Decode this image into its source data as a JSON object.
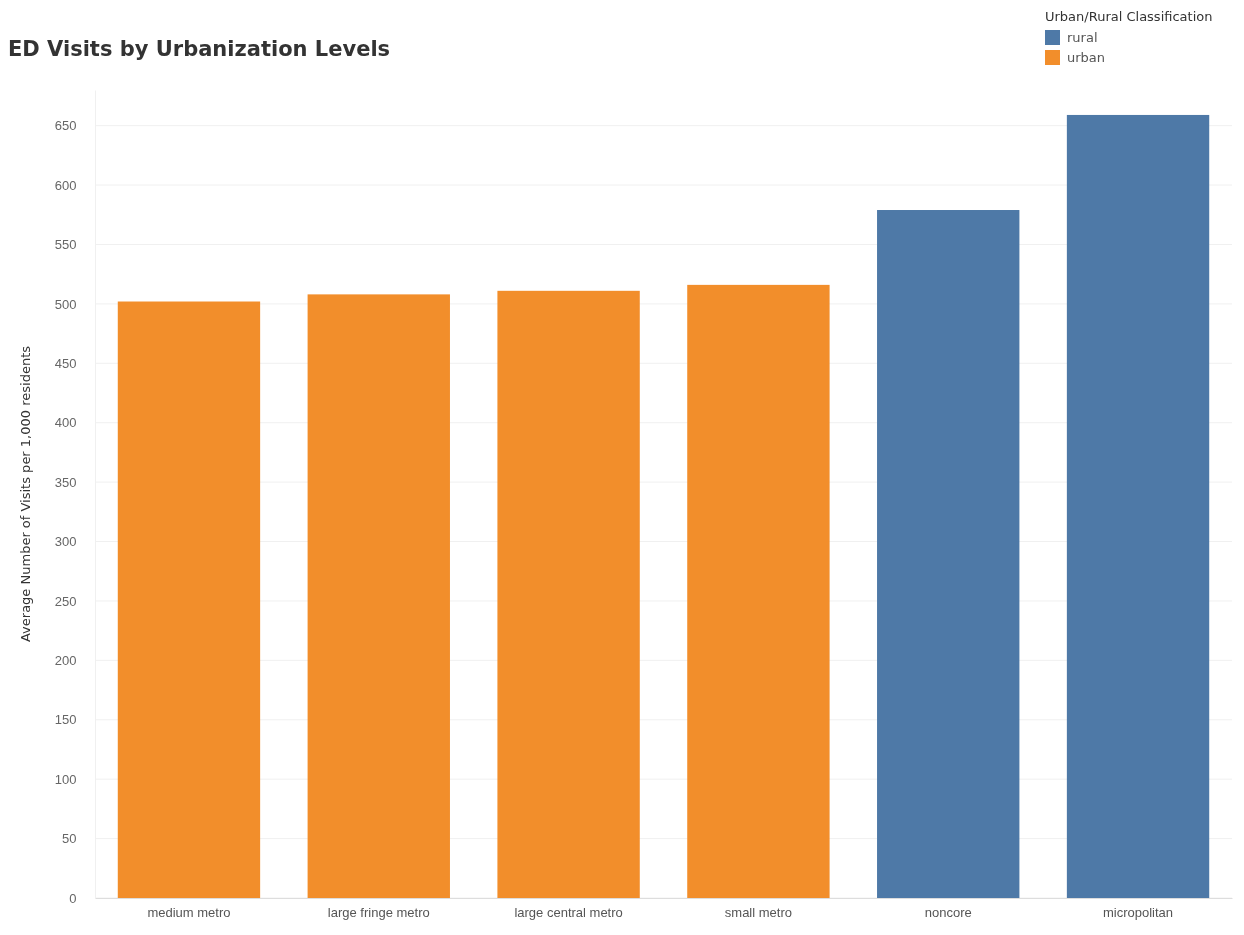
{
  "chart_data": {
    "type": "bar",
    "title": "ED Visits by Urbanization Levels",
    "ylabel": "Average Number of Visits per 1,000 residents",
    "legend_title": "Urban/Rural Classification",
    "categories": [
      "medium metro",
      "large fringe metro",
      "large central metro",
      "small metro",
      "noncore",
      "micropolitan"
    ],
    "series": [
      {
        "name": "rural",
        "color": "#4e79a7",
        "values": [
          null,
          null,
          null,
          null,
          579,
          659
        ]
      },
      {
        "name": "urban",
        "color": "#f28e2b",
        "values": [
          502,
          508,
          511,
          516,
          null,
          null
        ]
      }
    ],
    "stacked": true,
    "ylim": [
      0,
      680
    ],
    "yticks": [
      0,
      50,
      100,
      150,
      200,
      250,
      300,
      350,
      400,
      450,
      500,
      550,
      600,
      650
    ],
    "grid": "y",
    "legend": "top right"
  }
}
